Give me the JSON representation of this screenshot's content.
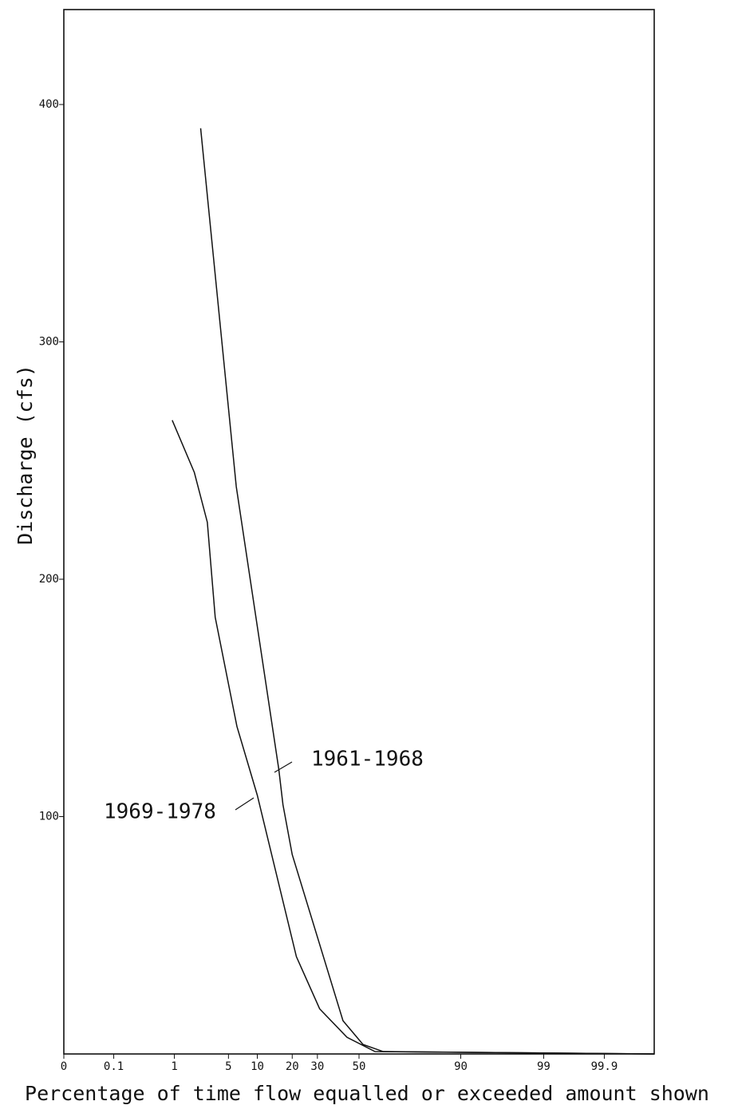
{
  "chart_data": {
    "type": "line",
    "xlabel": "Percentage of time flow equalled or exceeded amount shown",
    "ylabel": "Discharge (cfs)",
    "xscale": "probability",
    "xlim": [
      0.01,
      99.99
    ],
    "xticks": [
      {
        "value": 0.01,
        "label": "0"
      },
      0.1,
      1,
      5,
      10,
      20,
      30,
      50,
      90,
      99,
      99.9
    ],
    "ylim": [
      0,
      440
    ],
    "yticks": [
      100,
      200,
      300,
      400
    ],
    "series": [
      {
        "name": "1961-1968",
        "color": "#111111",
        "x": [
          2.3,
          6.1,
          15.6,
          16.9,
          20,
          42,
          52,
          62,
          99.99
        ],
        "values": [
          390,
          239,
          120,
          105,
          84,
          14,
          4,
          1,
          0
        ]
      },
      {
        "name": "1969-1978",
        "color": "#111111",
        "x": [
          0.93,
          1.9,
          2.8,
          3.5,
          6.2,
          10,
          21.5,
          31,
          44,
          58,
          99.99
        ],
        "values": [
          267,
          245,
          224,
          184,
          138,
          109,
          41,
          19,
          7,
          1,
          0
        ]
      }
    ]
  }
}
